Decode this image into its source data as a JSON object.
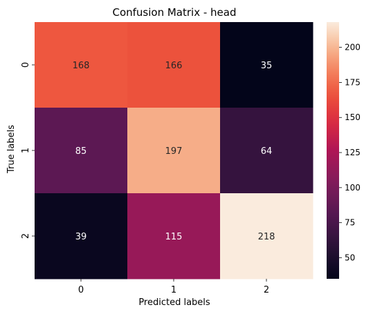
{
  "chart_data": {
    "type": "heatmap",
    "title": "Confusion Matrix - head",
    "xlabel": "Predicted labels",
    "ylabel": "True labels",
    "x_categories": [
      "0",
      "1",
      "2"
    ],
    "y_categories": [
      "0",
      "1",
      "2"
    ],
    "matrix": [
      [
        168,
        166,
        35
      ],
      [
        85,
        197,
        64
      ],
      [
        39,
        115,
        218
      ]
    ],
    "colormap": "rocket",
    "colorbar": {
      "range": [
        35,
        218
      ],
      "ticks": [
        50,
        75,
        100,
        125,
        150,
        175,
        200
      ]
    },
    "grid": false
  }
}
